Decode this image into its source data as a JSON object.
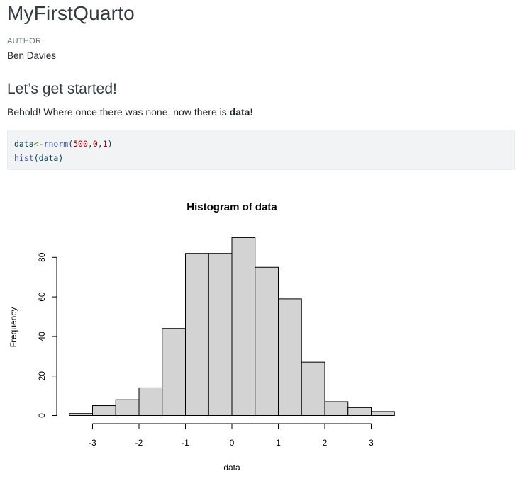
{
  "document": {
    "title": "MyFirstQuarto",
    "author_label": "AUTHOR",
    "author": "Ben Davies",
    "section_heading": "Let’s get started!",
    "paragraph_text": "Behold! Where once there was none, now there is ",
    "paragraph_bold": "data!"
  },
  "code": {
    "line1": {
      "var": "data",
      "assign": "<-",
      "fn": "rnorm",
      "open": "(",
      "a1": "500",
      "c1": ",",
      "a2": "0",
      "c2": ",",
      "a3": "1",
      "close": ")"
    },
    "line2": {
      "fn": "hist",
      "open": "(",
      "arg": "data",
      "close": ")"
    }
  },
  "chart_data": {
    "type": "bar",
    "title": "Histogram of data",
    "xlabel": "data",
    "ylabel": "Frequency",
    "bin_edges": [
      -3.5,
      -3.0,
      -2.5,
      -2.0,
      -1.5,
      -1.0,
      -0.5,
      0.0,
      0.5,
      1.0,
      1.5,
      2.0,
      2.5,
      3.0,
      3.5
    ],
    "values": [
      1,
      5,
      8,
      14,
      44,
      82,
      82,
      90,
      75,
      59,
      27,
      7,
      4,
      2
    ],
    "x_ticks": [
      -3,
      -2,
      -1,
      0,
      1,
      2,
      3
    ],
    "x_tick_labels": [
      "-3",
      "-2",
      "-1",
      "0",
      "1",
      "2",
      "3"
    ],
    "y_ticks": [
      0,
      20,
      40,
      60,
      80
    ],
    "y_tick_labels": [
      "0",
      "20",
      "40",
      "60",
      "80"
    ],
    "xlim": [
      -3.5,
      3.5
    ],
    "ylim": [
      0,
      90
    ],
    "bar_fill": "#d3d3d3",
    "bar_stroke": "#000000",
    "grid": false
  }
}
